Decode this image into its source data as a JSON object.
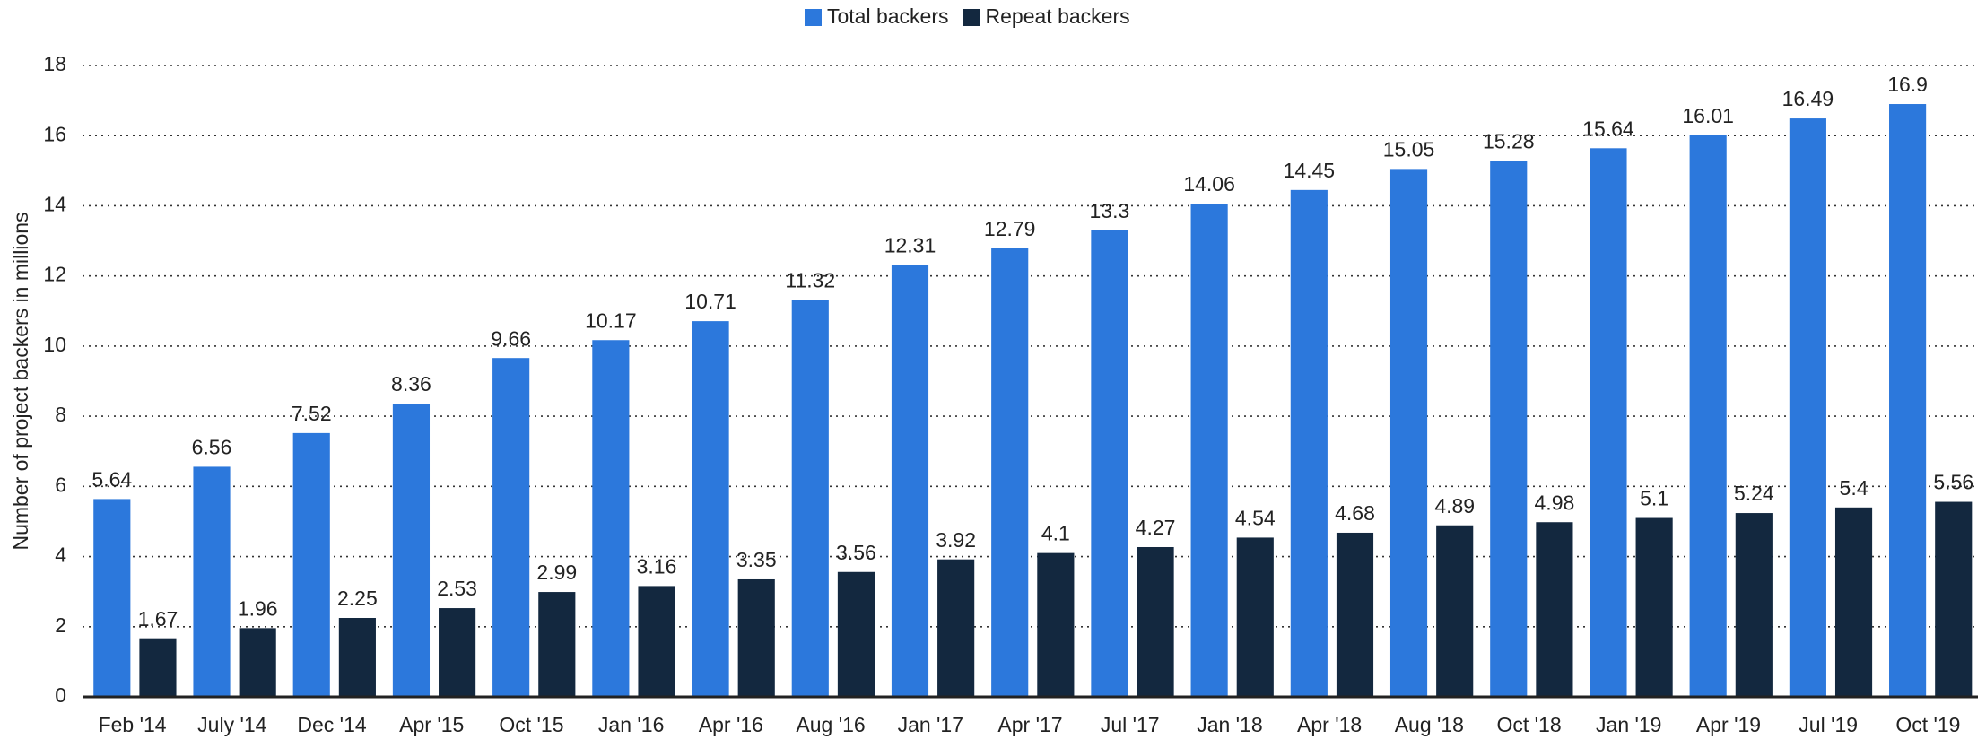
{
  "chart_data": {
    "type": "bar",
    "y_label": "Number of project backers in millions",
    "categories": [
      "Feb '14",
      "July '14",
      "Dec '14",
      "Apr '15",
      "Oct '15",
      "Jan '16",
      "Apr '16",
      "Aug '16",
      "Jan '17",
      "Apr '17",
      "Jul '17",
      "Jan '18",
      "Apr '18",
      "Aug '18",
      "Oct '18",
      "Jan '19",
      "Apr '19",
      "Jul '19",
      "Oct '19"
    ],
    "series": [
      {
        "name": "Total backers",
        "color": "#2c78dc",
        "values": [
          5.64,
          6.56,
          7.52,
          8.36,
          9.66,
          10.17,
          10.71,
          11.32,
          12.31,
          12.79,
          13.3,
          14.06,
          14.45,
          15.05,
          15.28,
          15.64,
          16.01,
          16.49,
          16.9
        ]
      },
      {
        "name": "Repeat backers",
        "color": "#13283f",
        "values": [
          1.67,
          1.96,
          2.25,
          2.53,
          2.99,
          3.16,
          3.35,
          3.56,
          3.92,
          4.1,
          4.27,
          4.54,
          4.68,
          4.89,
          4.98,
          5.1,
          5.24,
          5.4,
          5.56
        ]
      }
    ],
    "ylim": [
      0,
      18
    ],
    "yticks": [
      0,
      2,
      4,
      6,
      8,
      10,
      12,
      14,
      16,
      18
    ],
    "grid": true,
    "legend": "top"
  }
}
